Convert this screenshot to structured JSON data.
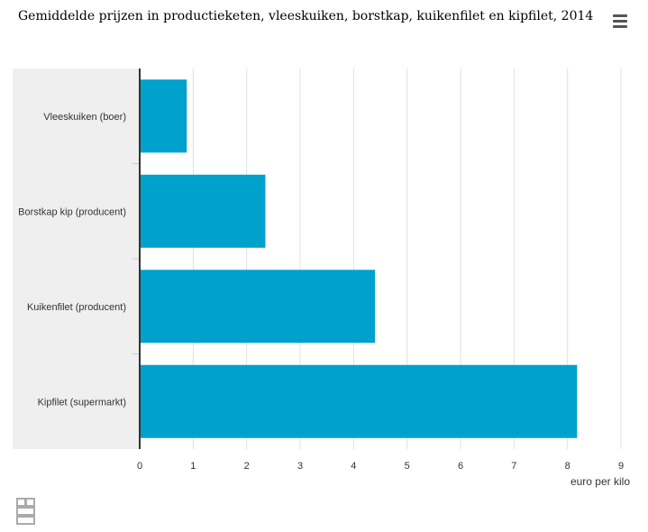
{
  "title": "Gemiddelde prijzen in productieketen, vleeskuiken, borstkap, kuikenfilet en kipfilet, 2014",
  "menu": {
    "icon": "hamburger-menu-icon"
  },
  "logo": {
    "icon": "cbs-logo-icon"
  },
  "colors": {
    "bar": "#00a1cd",
    "plot_band": "#efefef",
    "grid": "#e0e0e0",
    "axis": "#333333"
  },
  "chart_data": {
    "type": "bar",
    "orientation": "horizontal",
    "title": "Gemiddelde prijzen in productieketen, vleeskuiken, borstkap, kuikenfilet en kipfilet, 2014",
    "categories": [
      "Vleeskuiken (boer)",
      "Borstkap kip (producent)",
      "Kuikenfilet (producent)",
      "Kipfilet (supermarkt)"
    ],
    "values": [
      0.88,
      2.35,
      4.4,
      8.18
    ],
    "xlabel": "euro per kilo",
    "ylabel": "",
    "xlim": [
      0,
      9
    ],
    "xticks": [
      "0",
      "1",
      "2",
      "3",
      "4",
      "5",
      "6",
      "7",
      "8",
      "9"
    ],
    "grid": true,
    "legend": false
  }
}
